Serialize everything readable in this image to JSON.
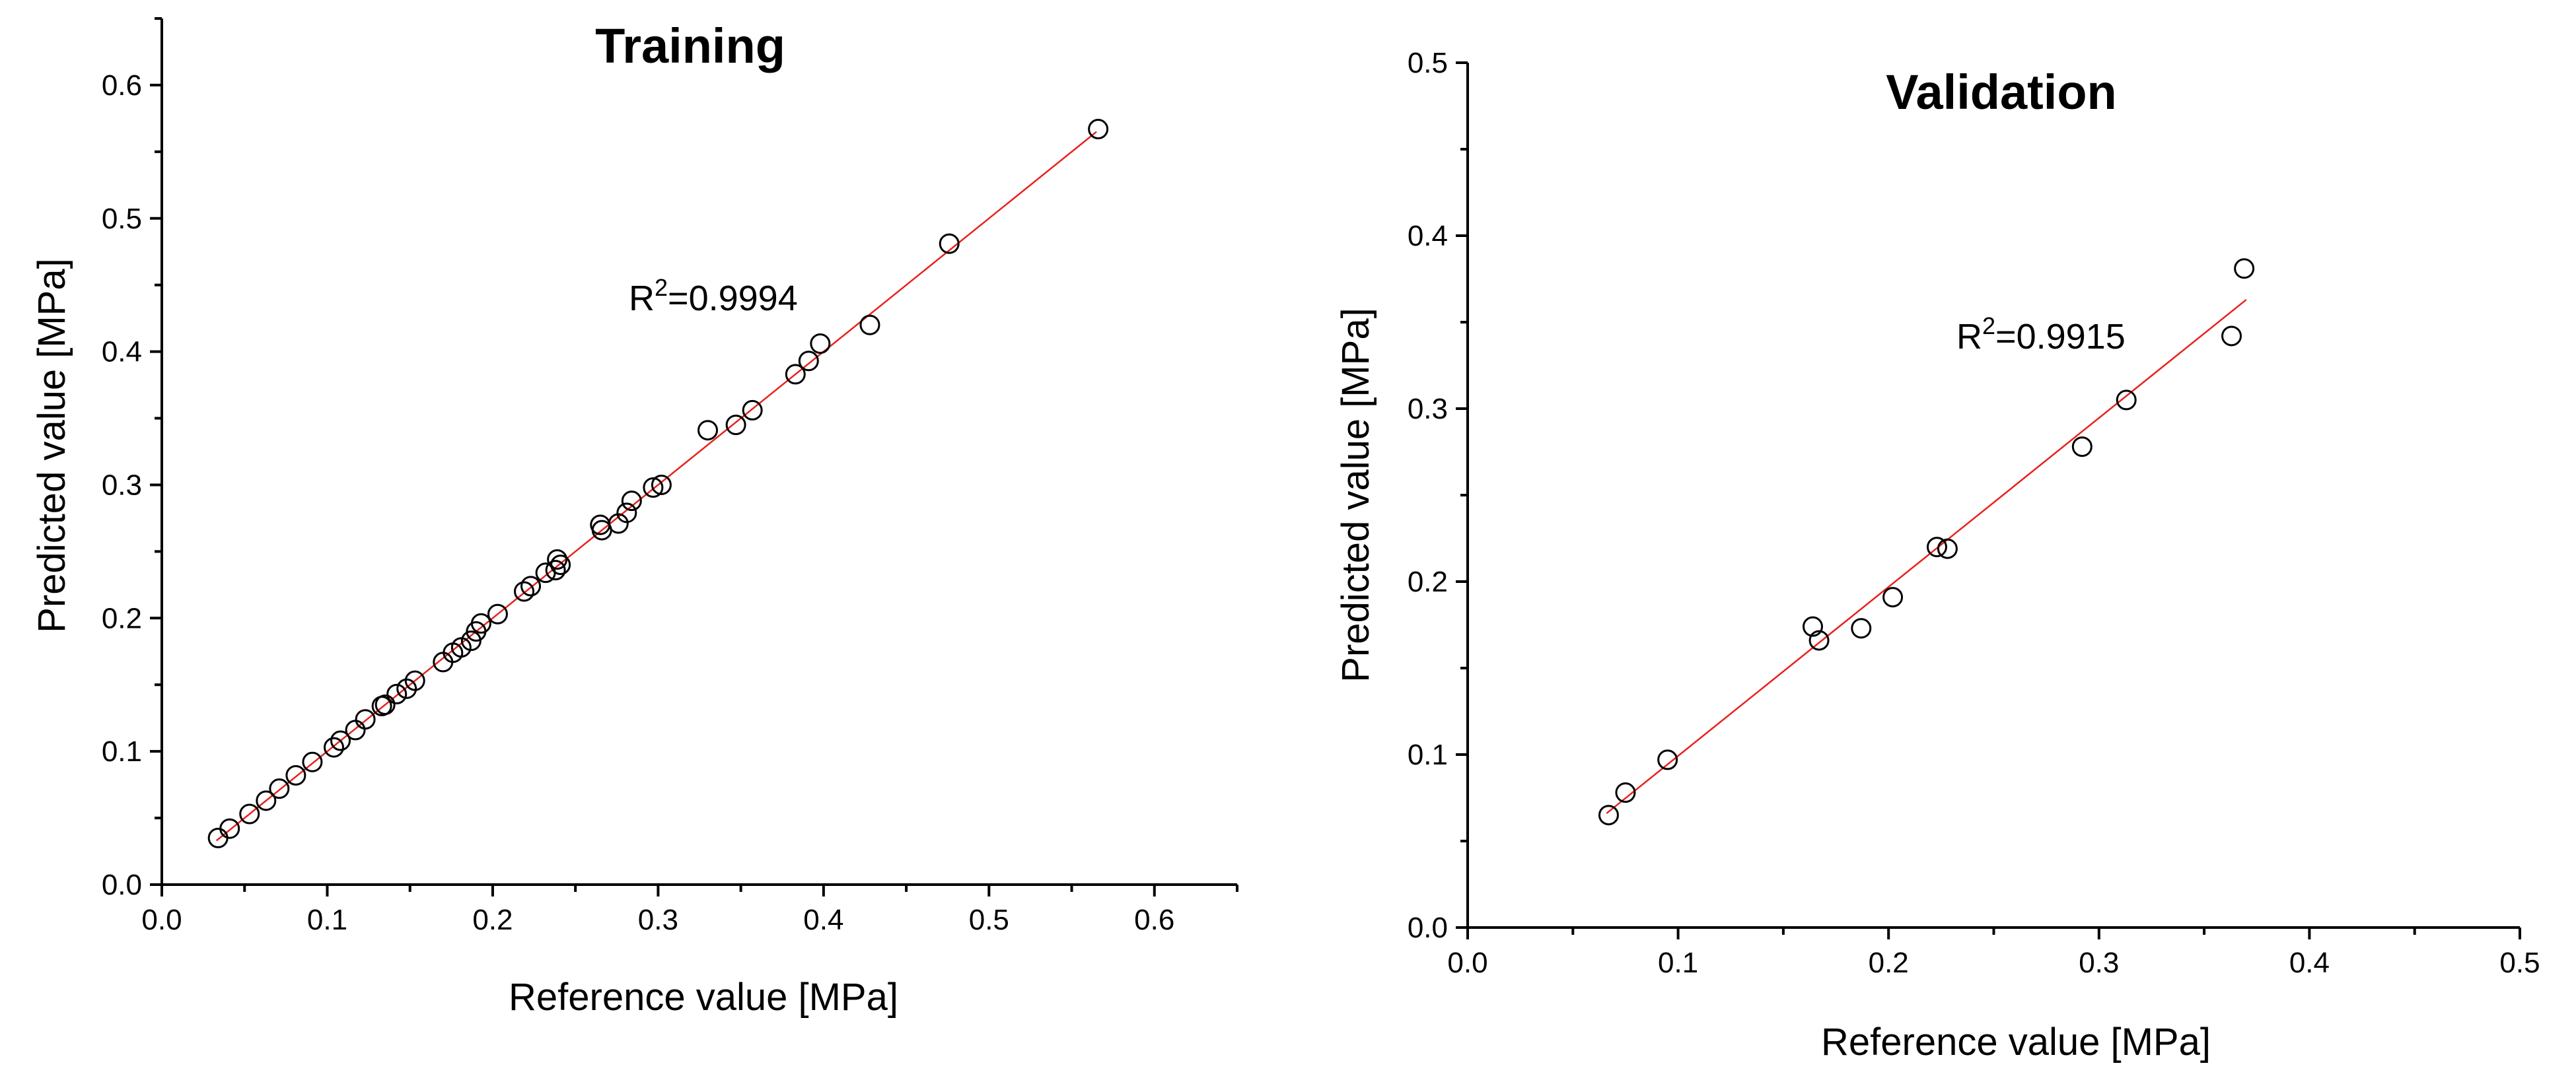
{
  "chart_data": [
    {
      "type": "scatter",
      "title": "Training",
      "xlabel": "Reference value [MPa]",
      "ylabel": "Predicted value [MPa]",
      "xlim": [
        0.0,
        0.65
      ],
      "ylim": [
        0.0,
        0.65
      ],
      "xticks": [
        "0.0",
        "0.1",
        "0.2",
        "0.3",
        "0.4",
        "0.5",
        "0.6"
      ],
      "yticks": [
        "0.0",
        "0.1",
        "0.2",
        "0.3",
        "0.4",
        "0.5",
        "0.6"
      ],
      "annotation": {
        "prefix": "R",
        "sup": "2",
        "value": "=0.9994"
      },
      "fit_line": {
        "x": [
          0.033,
          0.565
        ],
        "y": [
          0.033,
          0.565
        ],
        "color": "#e8211d"
      },
      "points": [
        [
          0.034,
          0.035
        ],
        [
          0.041,
          0.042
        ],
        [
          0.053,
          0.053
        ],
        [
          0.063,
          0.063
        ],
        [
          0.071,
          0.072
        ],
        [
          0.081,
          0.082
        ],
        [
          0.091,
          0.092
        ],
        [
          0.104,
          0.103
        ],
        [
          0.108,
          0.108
        ],
        [
          0.117,
          0.116
        ],
        [
          0.123,
          0.124
        ],
        [
          0.133,
          0.134
        ],
        [
          0.135,
          0.135
        ],
        [
          0.142,
          0.143
        ],
        [
          0.148,
          0.147
        ],
        [
          0.153,
          0.153
        ],
        [
          0.17,
          0.167
        ],
        [
          0.176,
          0.174
        ],
        [
          0.181,
          0.178
        ],
        [
          0.187,
          0.183
        ],
        [
          0.19,
          0.19
        ],
        [
          0.193,
          0.196
        ],
        [
          0.203,
          0.203
        ],
        [
          0.219,
          0.22
        ],
        [
          0.223,
          0.224
        ],
        [
          0.232,
          0.234
        ],
        [
          0.238,
          0.236
        ],
        [
          0.239,
          0.244
        ],
        [
          0.241,
          0.24
        ],
        [
          0.265,
          0.27
        ],
        [
          0.266,
          0.266
        ],
        [
          0.276,
          0.271
        ],
        [
          0.281,
          0.279
        ],
        [
          0.284,
          0.288
        ],
        [
          0.297,
          0.298
        ],
        [
          0.302,
          0.3
        ],
        [
          0.33,
          0.341
        ],
        [
          0.347,
          0.345
        ],
        [
          0.357,
          0.356
        ],
        [
          0.383,
          0.383
        ],
        [
          0.391,
          0.393
        ],
        [
          0.398,
          0.406
        ],
        [
          0.428,
          0.42
        ],
        [
          0.476,
          0.481
        ],
        [
          0.566,
          0.567
        ]
      ]
    },
    {
      "type": "scatter",
      "title": "Validation",
      "xlabel": "Reference value [MPa]",
      "ylabel": "Predicted value [MPa]",
      "xlim": [
        0.0,
        0.5
      ],
      "ylim": [
        0.0,
        0.5
      ],
      "xticks": [
        "0.0",
        "0.1",
        "0.2",
        "0.3",
        "0.4",
        "0.5"
      ],
      "yticks": [
        "0.0",
        "0.1",
        "0.2",
        "0.3",
        "0.4",
        "0.5"
      ],
      "annotation": {
        "prefix": "R",
        "sup": "2",
        "value": "=0.9915"
      },
      "fit_line": {
        "x": [
          0.066,
          0.37
        ],
        "y": [
          0.066,
          0.363
        ],
        "color": "#e8211d"
      },
      "points": [
        [
          0.067,
          0.065
        ],
        [
          0.075,
          0.078
        ],
        [
          0.095,
          0.097
        ],
        [
          0.164,
          0.174
        ],
        [
          0.167,
          0.166
        ],
        [
          0.187,
          0.173
        ],
        [
          0.202,
          0.191
        ],
        [
          0.223,
          0.22
        ],
        [
          0.228,
          0.219
        ],
        [
          0.292,
          0.278
        ],
        [
          0.313,
          0.305
        ],
        [
          0.363,
          0.342
        ],
        [
          0.369,
          0.381
        ]
      ]
    }
  ]
}
